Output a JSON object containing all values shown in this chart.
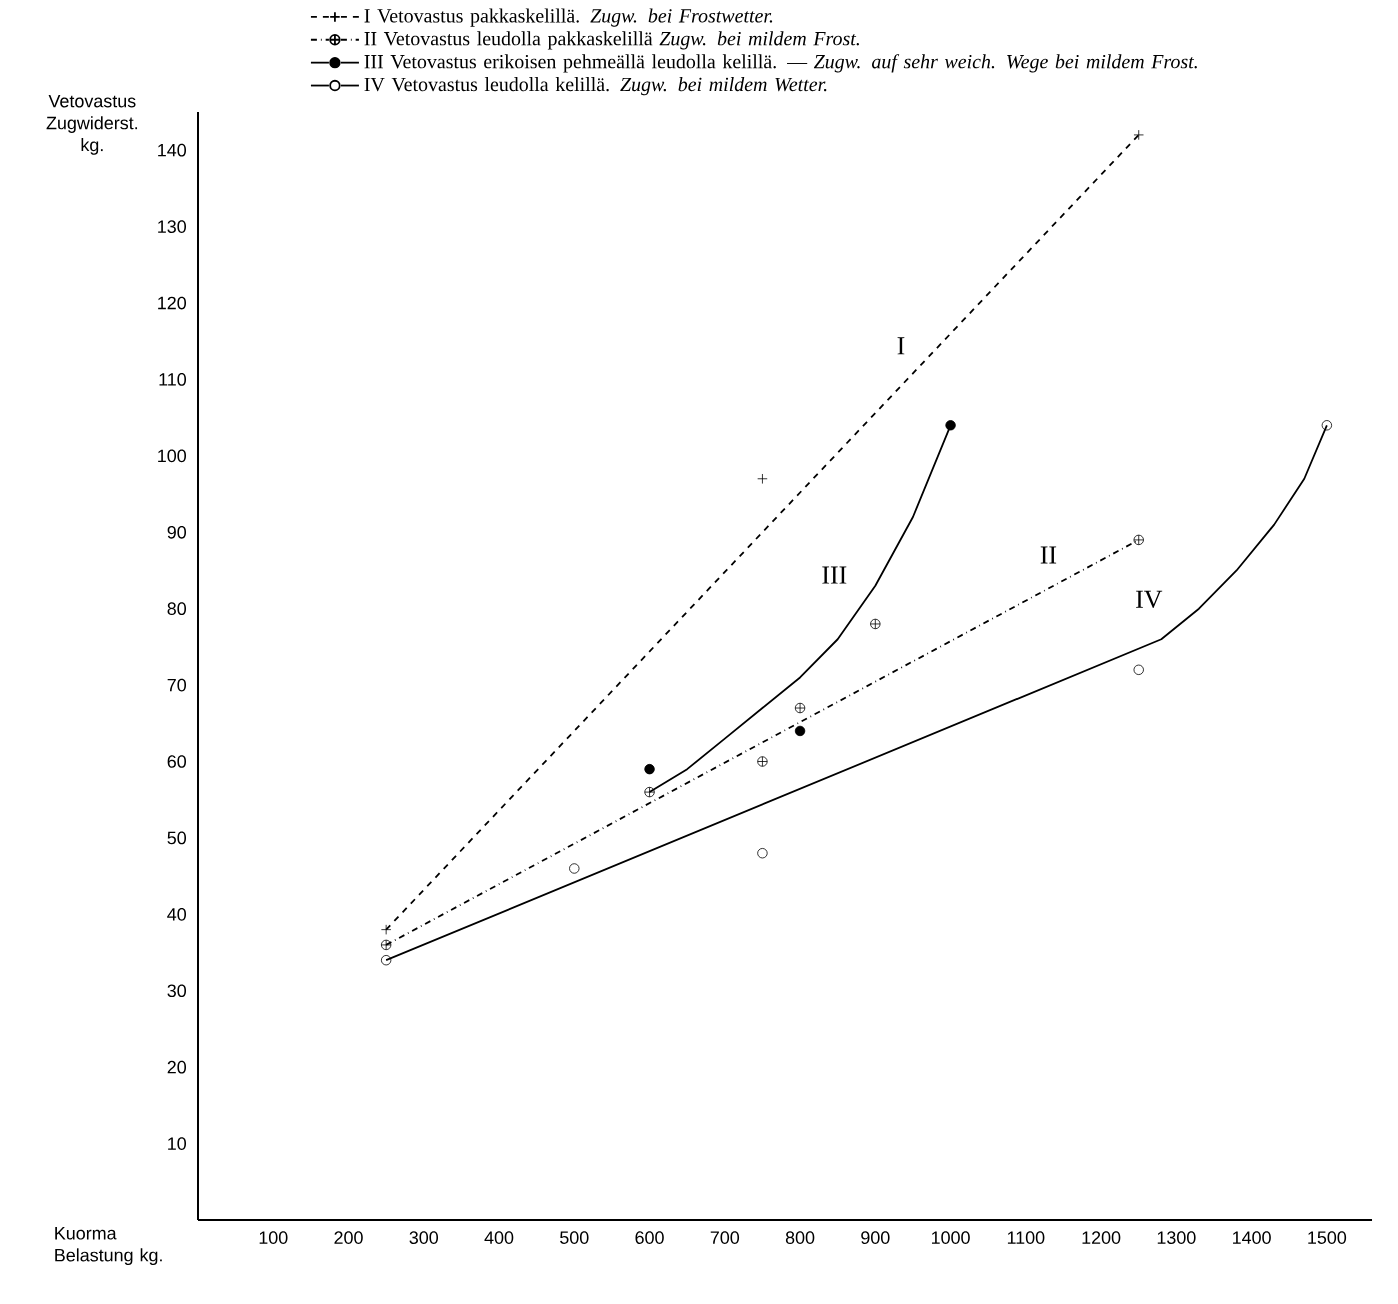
{
  "chart_data": {
    "type": "line",
    "xlabel": "Kuorma Belastung kg.",
    "ylabel": "Vetovastus Zugwiderst. kg.",
    "xlim": [
      0,
      1560
    ],
    "ylim": [
      0,
      145
    ],
    "xticks": [
      100,
      200,
      300,
      400,
      500,
      600,
      700,
      800,
      900,
      1000,
      1100,
      1200,
      1300,
      1400,
      1500
    ],
    "yticks": [
      10,
      20,
      30,
      40,
      50,
      60,
      70,
      80,
      90,
      100,
      110,
      120,
      130,
      140
    ],
    "grid": false,
    "legend": "top",
    "series": [
      {
        "name": "I Vetovastus pakkaskelillä. *Zugw. bei Frostwetter.*",
        "color": "#000000",
        "line_style": "dashed",
        "x": [
          250,
          1250
        ],
        "values": [
          38,
          142
        ]
      },
      {
        "name": "II Vetovastus leudolla pakkaskelillä *Zugw. bei mildem Frost.*",
        "color": "#000000",
        "line_style": "dashdot",
        "x": [
          250,
          1250
        ],
        "values": [
          36,
          89
        ]
      },
      {
        "name": "III Vetovastus erikoisen pehmeällä leudolla kelillä. — *Zugw. auf sehr weich. Wege bei mildem Frost.*",
        "color": "#000000",
        "line_style": "solid",
        "x": [
          600,
          650,
          700,
          750,
          800,
          850,
          900,
          950,
          1000
        ],
        "values": [
          56,
          59,
          63,
          67,
          71,
          76,
          83,
          92,
          104
        ]
      },
      {
        "name": "IV Vetovastus leudolla kelillä. *Zugw. bei mildem Wetter.*",
        "color": "#000000",
        "line_style": "solid",
        "x": [
          250,
          1280,
          1330,
          1380,
          1430,
          1470,
          1500
        ],
        "values": [
          34,
          76,
          80,
          85,
          91,
          97,
          104
        ]
      },
      {
        "type": "scatter",
        "color": "#000000",
        "marker": "cross",
        "x": [
          250,
          750,
          1250
        ],
        "values": [
          38,
          97,
          142
        ]
      },
      {
        "type": "scatter",
        "color": "#000000",
        "marker": "cross",
        "x": [
          250,
          600,
          750,
          800,
          900,
          1250
        ],
        "values": [
          36,
          56,
          60,
          67,
          78,
          89
        ]
      },
      {
        "type": "scatter",
        "color": "#000000",
        "marker": "circle",
        "x": [
          600,
          800,
          1000
        ],
        "values": [
          59,
          64,
          104
        ]
      },
      {
        "type": "scatter",
        "color": "#000000",
        "marker": "circle",
        "x": [
          250,
          500,
          750,
          1250,
          1500
        ],
        "values": [
          34,
          46,
          48,
          72,
          104
        ]
      }
    ],
    "annotations": [
      "I",
      "II",
      "III",
      "IV"
    ]
  }
}
